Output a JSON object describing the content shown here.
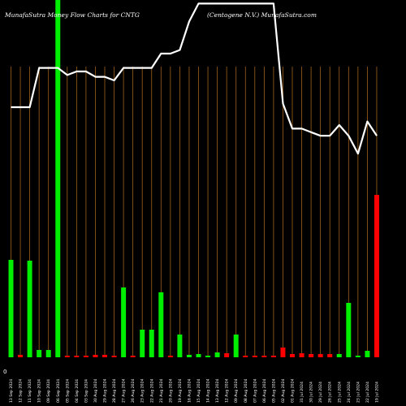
{
  "chart_data": {
    "type": "bar",
    "title_left": "MunafaSutra  Money Flow  Charts for CNTG",
    "title_right": "(Centogene   N.V.) MunafaSutra.com",
    "y_axis_label": "0",
    "grid": true,
    "categories": [
      "Fri 13 Sep 2024",
      "Thu 12 Sep 2024",
      "Wed 11 Sep 2024",
      "Tue 10 Sep 2024",
      "Mon 09 Sep 2024",
      "Fri 06 Sep 2024",
      "Thu 05 Sep 2024",
      "Wed 04 Sep 2024",
      "Tue 03 Sep 2024",
      "Fri 30 Aug 2024",
      "Thu 29 Aug 2024",
      "Wed 28 Aug 2024",
      "Tue 27 Aug 2024",
      "Mon 26 Aug 2024",
      "Fri 23 Aug 2024",
      "Thu 22 Aug 2024",
      "Wed 21 Aug 2024",
      "Tue 20 Aug 2024",
      "Mon 19 Aug 2024",
      "Fri 16 Aug 2024",
      "Thu 15 Aug 2024",
      "Wed 14 Aug 2024",
      "Tue 13 Aug 2024",
      "Mon 12 Aug 2024",
      "Fri 09 Aug 2024",
      "Thu 08 Aug 2024",
      "Wed 07 Aug 2024",
      "Tue 06 Aug 2024",
      "Mon 05 Aug 2024",
      "Fri 02 Aug 2024",
      "Thu 01 Aug 2024",
      "Wed 31 Jul 2024",
      "Tue 30 Jul 2024",
      "Mon 29 Jul 2024",
      "Fri 26 Jul 2024",
      "Thu 25 Jul 2024",
      "Wed 24 Jul 2024",
      "Tue 23 Jul 2024",
      "Mon 22 Jul 2024",
      "Fri 19 Jul 2024"
    ],
    "tick_labels": [
      "13 Sep 2024",
      "12 Sep 2024",
      "11 Sep 2024",
      "10 Sep 2024",
      "09 Sep 2024",
      "06 Sep 2024",
      "05 Sep 2024",
      "04 Sep 2024",
      "03 Sep 2024",
      "30 Aug 2024",
      "29 Aug 2024",
      "28 Aug 2024",
      "27 Aug 2024",
      "26 Aug 2024",
      "23 Aug 2024",
      "22 Aug 2024",
      "21 Aug 2024",
      "20 Aug 2024",
      "19 Aug 2024",
      "16 Aug 2024",
      "15 Aug 2024",
      "14 Aug 2024",
      "13 Aug 2024",
      "12 Aug 2024",
      "09 Aug 2024",
      "08 Aug 2024",
      "07 Aug 2024",
      "06 Aug 2024",
      "05 Aug 2024",
      "02 Aug 2024",
      "01 Aug 2024",
      "31 Jul 2024",
      "30 Jul 2024",
      "29 Jul 2024",
      "26 Jul 2024",
      "25 Jul 2024",
      "24 Jul 2024",
      "23 Jul 2024",
      "22 Jul 2024",
      "19 Jul 2024"
    ],
    "bars": [
      {
        "value": 120,
        "dir": "up"
      },
      {
        "value": 3,
        "dir": "down"
      },
      {
        "value": 119,
        "dir": "up"
      },
      {
        "value": 9,
        "dir": "up"
      },
      {
        "value": 9,
        "dir": "up"
      },
      {
        "value": 440,
        "dir": "up"
      },
      {
        "value": 2,
        "dir": "down"
      },
      {
        "value": 2,
        "dir": "down"
      },
      {
        "value": 2,
        "dir": "down"
      },
      {
        "value": 3,
        "dir": "down"
      },
      {
        "value": 3,
        "dir": "down"
      },
      {
        "value": 2,
        "dir": "down"
      },
      {
        "value": 86,
        "dir": "up"
      },
      {
        "value": 2,
        "dir": "down"
      },
      {
        "value": 34,
        "dir": "up"
      },
      {
        "value": 34,
        "dir": "up"
      },
      {
        "value": 80,
        "dir": "up"
      },
      {
        "value": 2,
        "dir": "down"
      },
      {
        "value": 28,
        "dir": "up"
      },
      {
        "value": 3,
        "dir": "up"
      },
      {
        "value": 4,
        "dir": "up"
      },
      {
        "value": 2,
        "dir": "up"
      },
      {
        "value": 6,
        "dir": "up"
      },
      {
        "value": 5,
        "dir": "down"
      },
      {
        "value": 28,
        "dir": "up"
      },
      {
        "value": 2,
        "dir": "down"
      },
      {
        "value": 2,
        "dir": "down"
      },
      {
        "value": 2,
        "dir": "down"
      },
      {
        "value": 2,
        "dir": "down"
      },
      {
        "value": 12,
        "dir": "down"
      },
      {
        "value": 4,
        "dir": "down"
      },
      {
        "value": 5,
        "dir": "down"
      },
      {
        "value": 4,
        "dir": "down"
      },
      {
        "value": 4,
        "dir": "down"
      },
      {
        "value": 4,
        "dir": "down"
      },
      {
        "value": 4,
        "dir": "up"
      },
      {
        "value": 67,
        "dir": "up"
      },
      {
        "value": 2,
        "dir": "up"
      },
      {
        "value": 8,
        "dir": "up"
      },
      {
        "value": 200,
        "dir": "down"
      }
    ],
    "price_line": [
      0.7,
      0.7,
      0.7,
      0.81,
      0.81,
      0.81,
      0.79,
      0.8,
      0.8,
      0.785,
      0.785,
      0.775,
      0.81,
      0.81,
      0.81,
      0.81,
      0.85,
      0.85,
      0.86,
      0.94,
      0.99,
      0.99,
      0.99,
      0.99,
      0.99,
      0.99,
      0.99,
      0.99,
      0.99,
      0.71,
      0.64,
      0.64,
      0.63,
      0.62,
      0.62,
      0.65,
      0.62,
      0.57,
      0.66,
      0.62
    ],
    "colors": {
      "up": "#00ee00",
      "down": "#ff0000",
      "grid": "#a0621a",
      "line": "#ffffff",
      "background": "#000000"
    }
  }
}
